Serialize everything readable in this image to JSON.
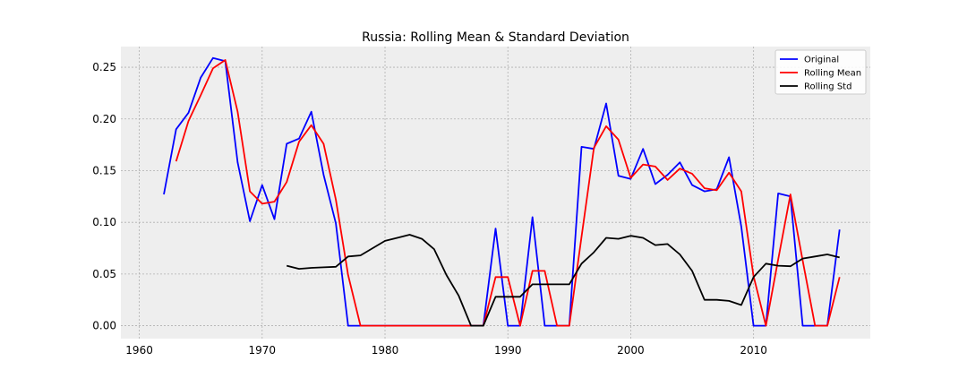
{
  "chart_data": {
    "type": "line",
    "title": "Russia: Rolling Mean & Standard Deviation",
    "xlabel": "",
    "ylabel": "",
    "xlim": [
      1958.5,
      2019.5
    ],
    "ylim": [
      -0.0125,
      0.27
    ],
    "xticks": [
      1960,
      1970,
      1980,
      1990,
      2000,
      2010
    ],
    "yticks": [
      "0.00",
      "0.05",
      "0.10",
      "0.15",
      "0.20",
      "0.25"
    ],
    "grid": true,
    "legend_position": "top-right",
    "series": [
      {
        "name": "Original",
        "color": "#0000ff",
        "points": [
          [
            1962,
            0.127
          ],
          [
            1963,
            0.19
          ],
          [
            1964,
            0.206
          ],
          [
            1965,
            0.24
          ],
          [
            1966,
            0.259
          ],
          [
            1967,
            0.256
          ],
          [
            1968,
            0.158
          ],
          [
            1969,
            0.101
          ],
          [
            1970,
            0.136
          ],
          [
            1971,
            0.103
          ],
          [
            1972,
            0.176
          ],
          [
            1973,
            0.181
          ],
          [
            1974,
            0.207
          ],
          [
            1975,
            0.146
          ],
          [
            1976,
            0.099
          ],
          [
            1977,
            0.0
          ],
          [
            1978,
            0.0
          ],
          [
            1979,
            0.0
          ],
          [
            1980,
            0.0
          ],
          [
            1981,
            0.0
          ],
          [
            1982,
            0.0
          ],
          [
            1983,
            0.0
          ],
          [
            1984,
            0.0
          ],
          [
            1985,
            0.0
          ],
          [
            1986,
            0.0
          ],
          [
            1987,
            0.0
          ],
          [
            1988,
            0.0
          ],
          [
            1989,
            0.094
          ],
          [
            1990,
            0.0
          ],
          [
            1991,
            0.0
          ],
          [
            1992,
            0.105
          ],
          [
            1993,
            0.0
          ],
          [
            1994,
            0.0
          ],
          [
            1995,
            0.0
          ],
          [
            1996,
            0.173
          ],
          [
            1997,
            0.171
          ],
          [
            1998,
            0.215
          ],
          [
            1999,
            0.145
          ],
          [
            2000,
            0.142
          ],
          [
            2001,
            0.171
          ],
          [
            2002,
            0.137
          ],
          [
            2003,
            0.146
          ],
          [
            2004,
            0.158
          ],
          [
            2005,
            0.136
          ],
          [
            2006,
            0.13
          ],
          [
            2007,
            0.132
          ],
          [
            2008,
            0.163
          ],
          [
            2009,
            0.096
          ],
          [
            2010,
            0.0
          ],
          [
            2011,
            0.0
          ],
          [
            2012,
            0.128
          ],
          [
            2013,
            0.125
          ],
          [
            2014,
            0.0
          ],
          [
            2015,
            0.0
          ],
          [
            2016,
            0.0
          ],
          [
            2017,
            0.093
          ]
        ]
      },
      {
        "name": "Rolling Mean",
        "color": "#ff0000",
        "points": [
          [
            1963,
            0.159
          ],
          [
            1964,
            0.198
          ],
          [
            1965,
            0.223
          ],
          [
            1966,
            0.249
          ],
          [
            1967,
            0.257
          ],
          [
            1968,
            0.207
          ],
          [
            1969,
            0.13
          ],
          [
            1970,
            0.118
          ],
          [
            1971,
            0.12
          ],
          [
            1972,
            0.139
          ],
          [
            1973,
            0.178
          ],
          [
            1974,
            0.194
          ],
          [
            1975,
            0.176
          ],
          [
            1976,
            0.122
          ],
          [
            1977,
            0.049
          ],
          [
            1978,
            0.0
          ],
          [
            1979,
            0.0
          ],
          [
            1980,
            0.0
          ],
          [
            1981,
            0.0
          ],
          [
            1982,
            0.0
          ],
          [
            1983,
            0.0
          ],
          [
            1984,
            0.0
          ],
          [
            1985,
            0.0
          ],
          [
            1986,
            0.0
          ],
          [
            1987,
            0.0
          ],
          [
            1988,
            0.0
          ],
          [
            1989,
            0.047
          ],
          [
            1990,
            0.047
          ],
          [
            1991,
            0.0
          ],
          [
            1992,
            0.053
          ],
          [
            1993,
            0.053
          ],
          [
            1994,
            0.0
          ],
          [
            1995,
            0.0
          ],
          [
            1996,
            0.086
          ],
          [
            1997,
            0.172
          ],
          [
            1998,
            0.193
          ],
          [
            1999,
            0.18
          ],
          [
            2000,
            0.143
          ],
          [
            2001,
            0.156
          ],
          [
            2002,
            0.154
          ],
          [
            2003,
            0.141
          ],
          [
            2004,
            0.152
          ],
          [
            2005,
            0.147
          ],
          [
            2006,
            0.133
          ],
          [
            2007,
            0.131
          ],
          [
            2008,
            0.148
          ],
          [
            2009,
            0.13
          ],
          [
            2010,
            0.048
          ],
          [
            2011,
            0.0
          ],
          [
            2012,
            0.064
          ],
          [
            2013,
            0.127
          ],
          [
            2014,
            0.063
          ],
          [
            2015,
            0.0
          ],
          [
            2016,
            0.0
          ],
          [
            2017,
            0.047
          ]
        ]
      },
      {
        "name": "Rolling Std",
        "color": "#000000",
        "points": [
          [
            1972,
            0.058
          ],
          [
            1973,
            0.055
          ],
          [
            1974,
            0.056
          ],
          [
            1975,
            0.0565
          ],
          [
            1976,
            0.057
          ],
          [
            1977,
            0.067
          ],
          [
            1978,
            0.068
          ],
          [
            1979,
            0.075
          ],
          [
            1980,
            0.082
          ],
          [
            1981,
            0.085
          ],
          [
            1982,
            0.088
          ],
          [
            1983,
            0.084
          ],
          [
            1984,
            0.074
          ],
          [
            1985,
            0.049
          ],
          [
            1986,
            0.029
          ],
          [
            1987,
            0.0
          ],
          [
            1988,
            0.0
          ],
          [
            1989,
            0.028
          ],
          [
            1990,
            0.028
          ],
          [
            1991,
            0.028
          ],
          [
            1992,
            0.04
          ],
          [
            1993,
            0.04
          ],
          [
            1994,
            0.04
          ],
          [
            1995,
            0.04
          ],
          [
            1996,
            0.06
          ],
          [
            1997,
            0.071
          ],
          [
            1998,
            0.085
          ],
          [
            1999,
            0.084
          ],
          [
            2000,
            0.087
          ],
          [
            2001,
            0.085
          ],
          [
            2002,
            0.078
          ],
          [
            2003,
            0.079
          ],
          [
            2004,
            0.069
          ],
          [
            2005,
            0.053
          ],
          [
            2006,
            0.025
          ],
          [
            2007,
            0.025
          ],
          [
            2008,
            0.024
          ],
          [
            2009,
            0.02
          ],
          [
            2010,
            0.047
          ],
          [
            2011,
            0.06
          ],
          [
            2012,
            0.058
          ],
          [
            2013,
            0.0575
          ],
          [
            2014,
            0.065
          ],
          [
            2015,
            0.067
          ],
          [
            2016,
            0.069
          ],
          [
            2017,
            0.066
          ]
        ]
      }
    ]
  }
}
